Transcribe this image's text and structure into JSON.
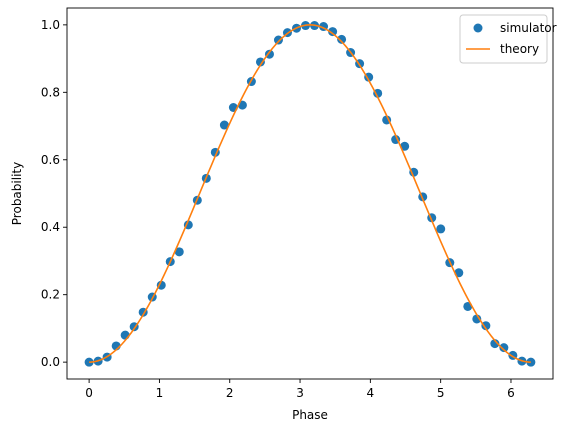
{
  "chart_data": {
    "type": "scatter",
    "title": "",
    "xlabel": "Phase",
    "ylabel": "Probability",
    "xlim": [
      -0.3145,
      6.5977
    ],
    "ylim": [
      -0.05,
      1.05
    ],
    "xticks": [
      0,
      1,
      2,
      3,
      4,
      5,
      6
    ],
    "xtick_labels": [
      "0",
      "1",
      "2",
      "3",
      "4",
      "5",
      "6"
    ],
    "yticks": [
      0.0,
      0.2,
      0.4,
      0.6,
      0.8,
      1.0
    ],
    "ytick_labels": [
      "0.0",
      "0.2",
      "0.4",
      "0.6",
      "0.8",
      "1.0"
    ],
    "grid": false,
    "legend_position": "top-right",
    "series": [
      {
        "name": "simulator",
        "kind": "scatter",
        "color": "#1f77b4",
        "x": [
          0.0,
          0.128,
          0.256,
          0.385,
          0.513,
          0.641,
          0.769,
          0.898,
          1.026,
          1.154,
          1.282,
          1.411,
          1.539,
          1.667,
          1.795,
          1.924,
          2.052,
          2.18,
          2.308,
          2.437,
          2.565,
          2.693,
          2.821,
          2.95,
          3.078,
          3.206,
          3.334,
          3.463,
          3.591,
          3.719,
          3.847,
          3.976,
          4.104,
          4.232,
          4.36,
          4.488,
          4.617,
          4.745,
          4.873,
          5.001,
          5.13,
          5.258,
          5.386,
          5.514,
          5.643,
          5.771,
          5.899,
          6.027,
          6.156,
          6.283
        ],
        "y": [
          0.0,
          0.003,
          0.015,
          0.048,
          0.08,
          0.105,
          0.148,
          0.193,
          0.228,
          0.298,
          0.327,
          0.407,
          0.48,
          0.545,
          0.622,
          0.703,
          0.755,
          0.762,
          0.832,
          0.89,
          0.913,
          0.955,
          0.977,
          0.99,
          0.998,
          0.998,
          0.995,
          0.98,
          0.957,
          0.918,
          0.885,
          0.845,
          0.797,
          0.718,
          0.66,
          0.64,
          0.563,
          0.49,
          0.428,
          0.395,
          0.295,
          0.265,
          0.165,
          0.128,
          0.108,
          0.055,
          0.043,
          0.02,
          0.003,
          0.0
        ]
      },
      {
        "name": "theory",
        "kind": "line",
        "color": "#ff7f0e",
        "function": "sin^2(phase/2)",
        "x_range": [
          0,
          6.283
        ]
      }
    ]
  }
}
